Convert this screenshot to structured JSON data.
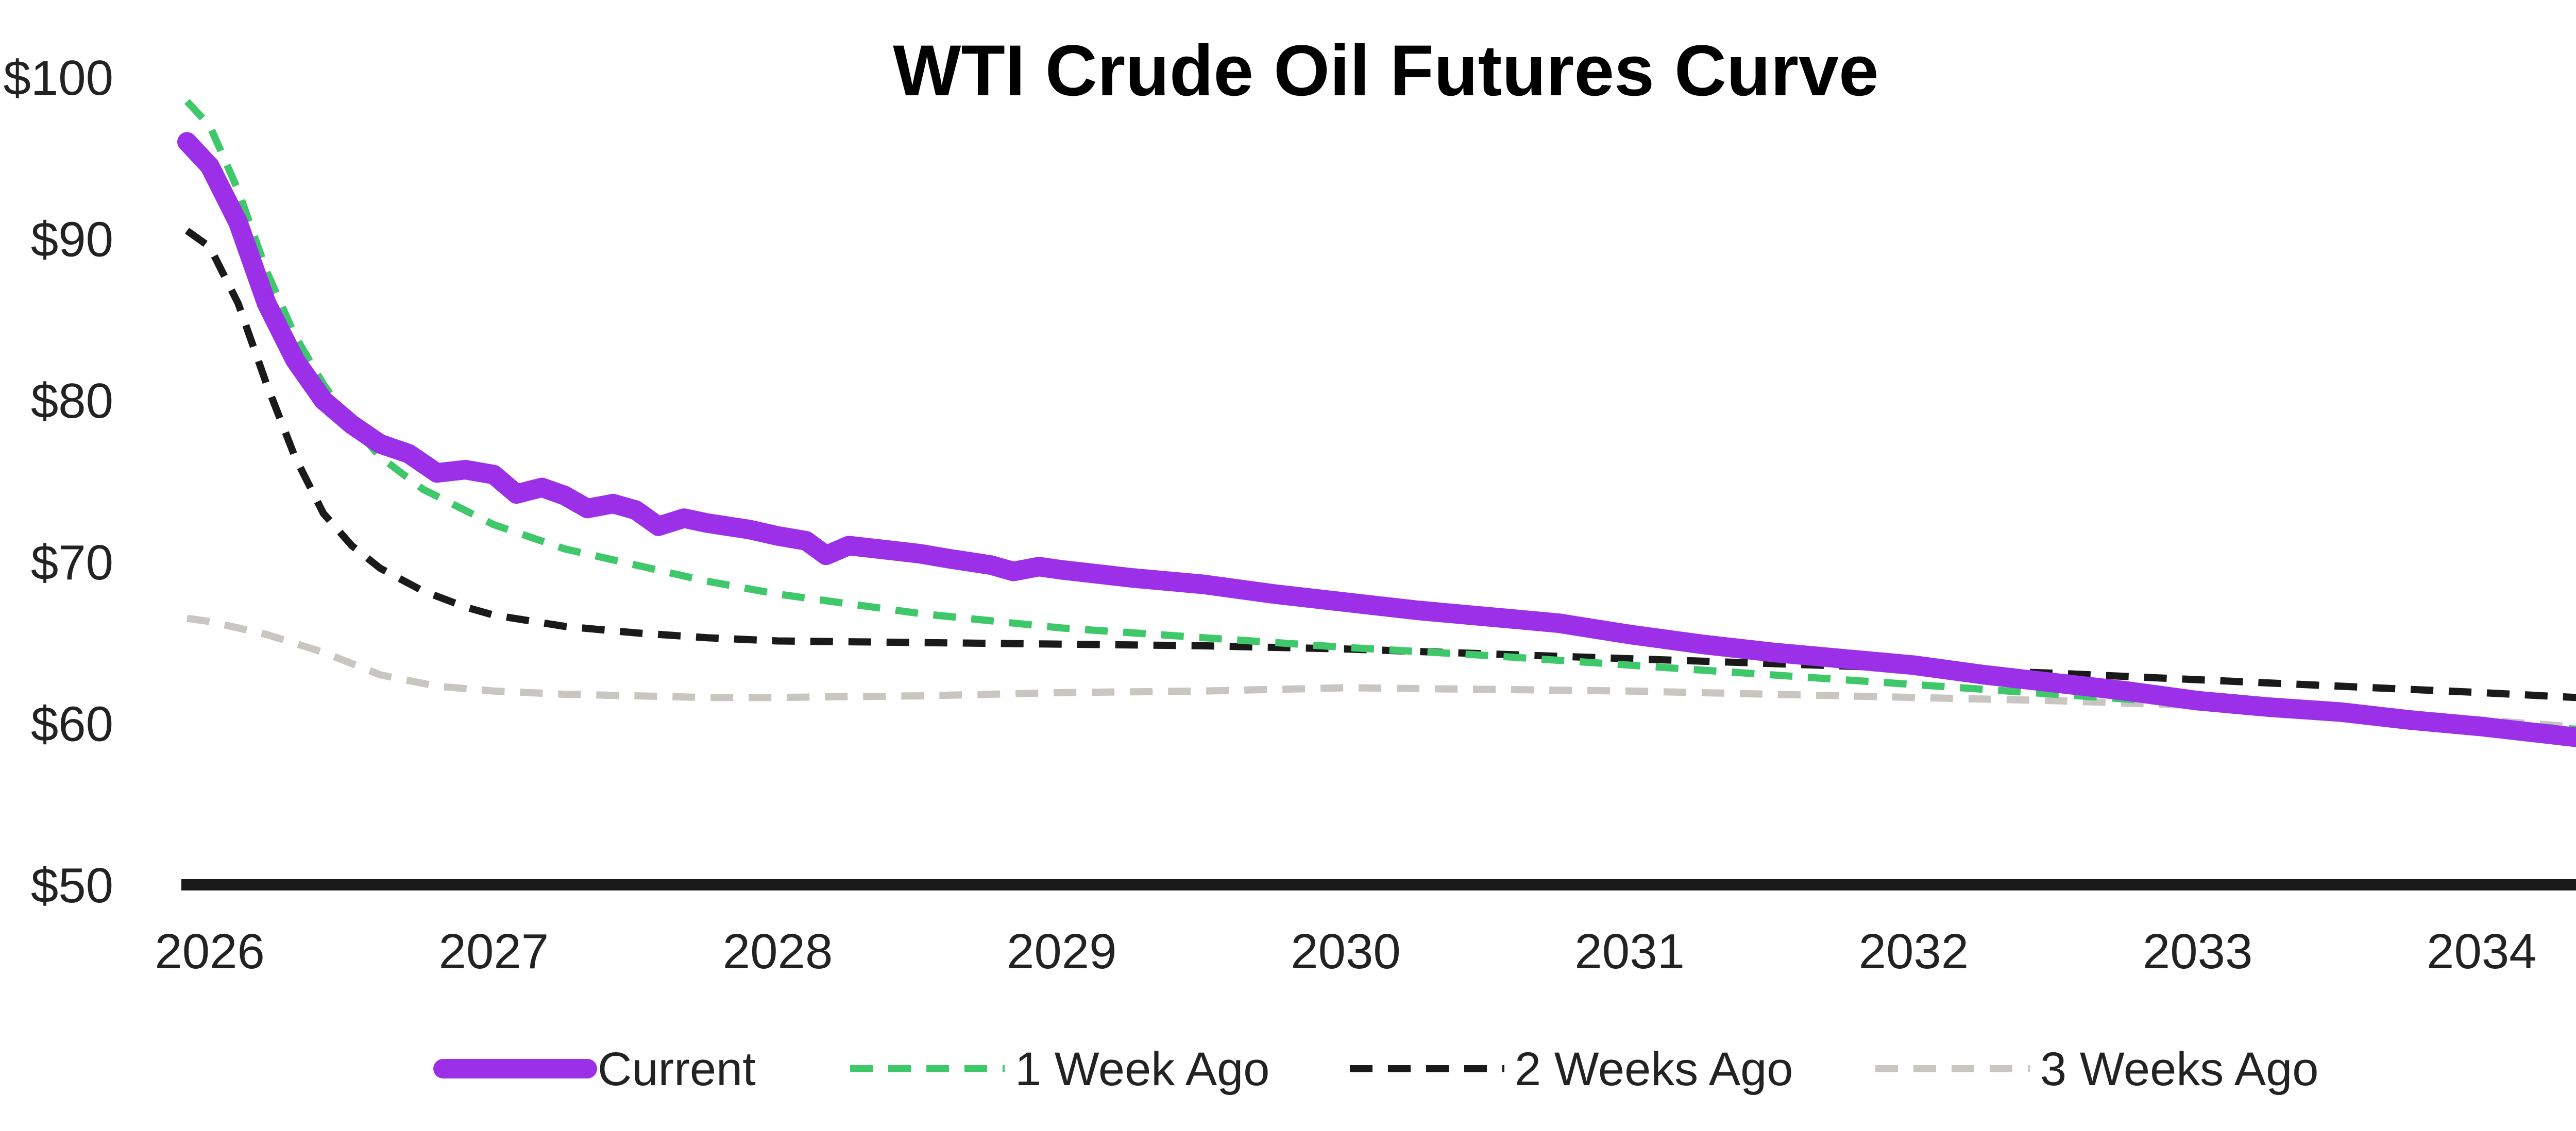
{
  "chart_data": {
    "type": "line",
    "title": "WTI Crude Oil Futures Curve",
    "xlabel": "",
    "ylabel": "",
    "xlim": [
      2025.9,
      2034.55
    ],
    "ylim": [
      50,
      100
    ],
    "x_ticks": [
      2026,
      2027,
      2028,
      2029,
      2030,
      2031,
      2032,
      2033,
      2034
    ],
    "x_tick_labels": [
      "2026",
      "2027",
      "2028",
      "2029",
      "2030",
      "2031",
      "2032",
      "2033",
      "2034"
    ],
    "y_ticks": [
      50,
      60,
      70,
      80,
      90,
      100
    ],
    "y_tick_labels": [
      "$50",
      "$60",
      "$70",
      "$80",
      "$90",
      "$100"
    ],
    "grid": false,
    "legend_position": "bottom",
    "series": [
      {
        "name": "Current",
        "color": "#9B30E8",
        "style": "solid",
        "points": [
          [
            2025.92,
            96.0
          ],
          [
            2026.0,
            94.5
          ],
          [
            2026.1,
            91.0
          ],
          [
            2026.2,
            86.0
          ],
          [
            2026.3,
            82.5
          ],
          [
            2026.4,
            80.0
          ],
          [
            2026.5,
            78.5
          ],
          [
            2026.6,
            77.3
          ],
          [
            2026.7,
            76.7
          ],
          [
            2026.8,
            75.5
          ],
          [
            2026.9,
            75.7
          ],
          [
            2027.0,
            75.4
          ],
          [
            2027.08,
            74.2
          ],
          [
            2027.17,
            74.6
          ],
          [
            2027.25,
            74.1
          ],
          [
            2027.33,
            73.3
          ],
          [
            2027.42,
            73.6
          ],
          [
            2027.5,
            73.2
          ],
          [
            2027.58,
            72.2
          ],
          [
            2027.67,
            72.7
          ],
          [
            2027.75,
            72.4
          ],
          [
            2027.9,
            72.0
          ],
          [
            2028.0,
            71.6
          ],
          [
            2028.1,
            71.3
          ],
          [
            2028.17,
            70.4
          ],
          [
            2028.25,
            71.0
          ],
          [
            2028.4,
            70.7
          ],
          [
            2028.5,
            70.5
          ],
          [
            2028.6,
            70.2
          ],
          [
            2028.75,
            69.8
          ],
          [
            2028.83,
            69.4
          ],
          [
            2028.92,
            69.7
          ],
          [
            2029.0,
            69.5
          ],
          [
            2029.25,
            69.0
          ],
          [
            2029.5,
            68.6
          ],
          [
            2029.75,
            68.0
          ],
          [
            2030.0,
            67.5
          ],
          [
            2030.25,
            67.0
          ],
          [
            2030.5,
            66.6
          ],
          [
            2030.75,
            66.2
          ],
          [
            2031.0,
            65.5
          ],
          [
            2031.25,
            64.9
          ],
          [
            2031.5,
            64.4
          ],
          [
            2031.75,
            64.0
          ],
          [
            2032.0,
            63.6
          ],
          [
            2032.25,
            63.0
          ],
          [
            2032.5,
            62.5
          ],
          [
            2032.75,
            62.0
          ],
          [
            2033.0,
            61.4
          ],
          [
            2033.25,
            61.0
          ],
          [
            2033.5,
            60.7
          ],
          [
            2033.75,
            60.2
          ],
          [
            2034.0,
            59.8
          ],
          [
            2034.25,
            59.3
          ],
          [
            2034.5,
            58.8
          ],
          [
            2034.55,
            58.6
          ]
        ]
      },
      {
        "name": "1 Week Ago",
        "color": "#3FC86A",
        "style": "dashed",
        "points": [
          [
            2025.92,
            98.5
          ],
          [
            2026.0,
            97.0
          ],
          [
            2026.1,
            93.0
          ],
          [
            2026.2,
            88.0
          ],
          [
            2026.3,
            84.0
          ],
          [
            2026.4,
            81.0
          ],
          [
            2026.5,
            78.5
          ],
          [
            2026.6,
            76.5
          ],
          [
            2026.75,
            74.5
          ],
          [
            2027.0,
            72.3
          ],
          [
            2027.25,
            70.8
          ],
          [
            2027.5,
            69.8
          ],
          [
            2027.75,
            68.8
          ],
          [
            2028.0,
            68.0
          ],
          [
            2028.5,
            66.8
          ],
          [
            2029.0,
            65.9
          ],
          [
            2029.5,
            65.3
          ],
          [
            2030.0,
            64.7
          ],
          [
            2030.5,
            64.2
          ],
          [
            2031.0,
            63.6
          ],
          [
            2031.5,
            63.0
          ],
          [
            2032.0,
            62.4
          ],
          [
            2032.5,
            61.8
          ],
          [
            2033.0,
            61.2
          ],
          [
            2033.5,
            60.6
          ],
          [
            2034.0,
            60.0
          ],
          [
            2034.55,
            59.4
          ]
        ]
      },
      {
        "name": "2 Weeks Ago",
        "color": "#1A1A1A",
        "style": "dashed",
        "points": [
          [
            2025.92,
            90.5
          ],
          [
            2026.0,
            89.5
          ],
          [
            2026.1,
            86.0
          ],
          [
            2026.2,
            81.0
          ],
          [
            2026.3,
            76.5
          ],
          [
            2026.4,
            73.0
          ],
          [
            2026.5,
            71.0
          ],
          [
            2026.6,
            69.6
          ],
          [
            2026.75,
            68.2
          ],
          [
            2026.9,
            67.2
          ],
          [
            2027.0,
            66.7
          ],
          [
            2027.25,
            66.0
          ],
          [
            2027.5,
            65.6
          ],
          [
            2027.75,
            65.3
          ],
          [
            2028.0,
            65.1
          ],
          [
            2028.5,
            65.0
          ],
          [
            2029.0,
            64.9
          ],
          [
            2029.5,
            64.8
          ],
          [
            2030.0,
            64.6
          ],
          [
            2030.5,
            64.3
          ],
          [
            2031.0,
            64.0
          ],
          [
            2031.5,
            63.7
          ],
          [
            2032.0,
            63.4
          ],
          [
            2032.5,
            63.1
          ],
          [
            2033.0,
            62.7
          ],
          [
            2033.5,
            62.3
          ],
          [
            2034.0,
            61.9
          ],
          [
            2034.55,
            61.4
          ]
        ]
      },
      {
        "name": "3 Weeks Ago",
        "color": "#C9C6C2",
        "style": "dashed",
        "points": [
          [
            2025.92,
            66.5
          ],
          [
            2026.0,
            66.3
          ],
          [
            2026.2,
            65.5
          ],
          [
            2026.4,
            64.4
          ],
          [
            2026.6,
            63.0
          ],
          [
            2026.8,
            62.3
          ],
          [
            2027.0,
            62.0
          ],
          [
            2027.25,
            61.8
          ],
          [
            2027.5,
            61.7
          ],
          [
            2027.75,
            61.6
          ],
          [
            2028.0,
            61.6
          ],
          [
            2028.5,
            61.7
          ],
          [
            2029.0,
            61.9
          ],
          [
            2029.5,
            62.0
          ],
          [
            2030.0,
            62.2
          ],
          [
            2030.5,
            62.1
          ],
          [
            2031.0,
            62.0
          ],
          [
            2031.5,
            61.8
          ],
          [
            2032.0,
            61.6
          ],
          [
            2032.5,
            61.4
          ],
          [
            2033.0,
            61.1
          ],
          [
            2033.5,
            60.7
          ],
          [
            2034.0,
            60.2
          ],
          [
            2034.55,
            59.5
          ]
        ]
      }
    ]
  }
}
